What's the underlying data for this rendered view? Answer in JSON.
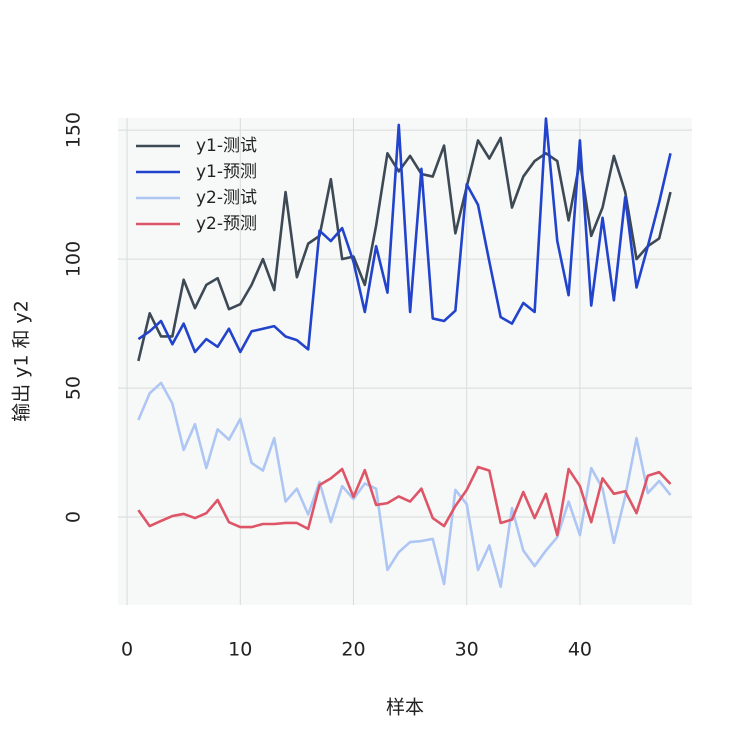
{
  "chart_data": {
    "type": "line",
    "x_label": "样本",
    "y_label": "输出 y1 和 y2",
    "x": [
      1,
      2,
      3,
      4,
      5,
      6,
      7,
      8,
      9,
      10,
      11,
      12,
      13,
      14,
      15,
      16,
      17,
      18,
      19,
      20,
      21,
      22,
      23,
      24,
      25,
      26,
      27,
      28,
      29,
      30,
      31,
      32,
      33,
      34,
      35,
      36,
      37,
      38,
      39,
      40,
      41,
      42,
      43,
      44,
      45,
      46,
      47,
      48
    ],
    "series": [
      {
        "name": "y1-测试",
        "color": "#3d4a55",
        "values": [
          60.5,
          79,
          70,
          70,
          92,
          81,
          90,
          92.6,
          80.6,
          82.5,
          90,
          100,
          88,
          126,
          93,
          106,
          109,
          131,
          100,
          101,
          90,
          113,
          141,
          134,
          140,
          133,
          132,
          144,
          110,
          128,
          146,
          139,
          147,
          120,
          132,
          138,
          141,
          138,
          115,
          138,
          109,
          120,
          140,
          126,
          100,
          105,
          108,
          126
        ]
      },
      {
        "name": "y1-预测",
        "color": "#2244cc",
        "values": [
          69,
          72,
          76,
          67,
          75,
          64,
          69,
          66,
          73,
          64,
          72,
          73,
          74,
          70,
          68.6,
          65,
          111,
          107,
          112,
          99,
          79.5,
          105,
          87,
          152,
          79.5,
          135,
          77,
          76,
          80,
          129,
          121,
          99,
          77.5,
          75,
          83,
          79.5,
          154.5,
          107,
          86,
          146,
          82,
          116,
          84,
          124,
          89,
          105,
          122,
          141
        ]
      },
      {
        "name": "y2-测试",
        "color": "#aec6f4",
        "values": [
          37.6,
          48,
          52,
          44,
          26,
          36,
          19,
          34,
          30,
          38,
          21,
          18,
          30.6,
          6,
          11,
          1,
          13.6,
          -2,
          12,
          7,
          13,
          11,
          -20.5,
          -13.6,
          -9.7,
          -9.3,
          -8.5,
          -26,
          10.5,
          5,
          -20.5,
          -11,
          -27,
          3.5,
          -13,
          -19,
          -13,
          -7.8,
          6,
          -7,
          19,
          11,
          -10,
          8,
          30.6,
          9.3,
          14,
          8.5
        ]
      },
      {
        "name": "y2-预测",
        "color": "#dd5566",
        "values": [
          2.7,
          -3.5,
          -1.5,
          0.4,
          1.2,
          -0.4,
          1.5,
          6.6,
          -2,
          -3.9,
          -3.9,
          -2.7,
          -2.7,
          -2.3,
          -2.3,
          -4.6,
          12.4,
          15,
          18.6,
          7.8,
          18.2,
          4.7,
          5.4,
          8,
          6,
          11,
          -0.4,
          -3.5,
          4.3,
          10.5,
          19.4,
          18,
          -2.3,
          -1,
          9.7,
          -0.4,
          9,
          -7,
          18.6,
          12,
          -2,
          15,
          9,
          10,
          1.5,
          16,
          17.4,
          12.8
        ]
      }
    ],
    "xlim": [
      -0.8,
      49.9
    ],
    "xticks": [
      0,
      10,
      20,
      30,
      40
    ],
    "ylim": [
      -34.1,
      154.7
    ],
    "yticks": [
      0,
      50,
      100,
      150
    ],
    "grid": true,
    "legend": "top-left"
  }
}
